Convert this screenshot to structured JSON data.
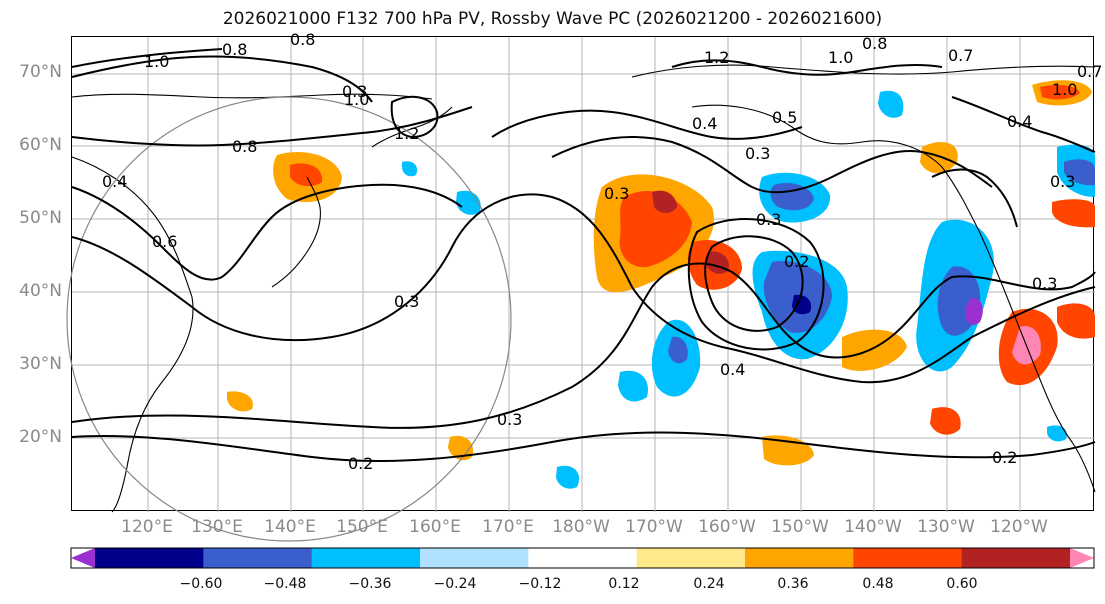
{
  "title": "2026021000 F132 700 hPa PV, Rossby Wave PC (2026021200 - 2026021600)",
  "latitude_labels": [
    "70°N",
    "60°N",
    "50°N",
    "40°N",
    "30°N",
    "20°N"
  ],
  "longitude_labels": [
    "120°E",
    "130°E",
    "140°E",
    "150°E",
    "160°E",
    "170°E",
    "180°W",
    "170°W",
    "160°W",
    "150°W",
    "140°W",
    "130°W",
    "120°W"
  ],
  "contour_labels": [
    "1.0",
    "0.8",
    "0.8",
    "1.0",
    "1.2",
    "0.8",
    "0.4",
    "0.6",
    "0.3",
    "0.3",
    "0.2",
    "0.3",
    "1.2",
    "1.0",
    "0.8",
    "0.7",
    "1.0",
    "0.4",
    "0.5",
    "0.3",
    "0.3",
    "0.3",
    "0.2",
    "0.4",
    "0.3",
    "0.4",
    "0.2",
    "0.3",
    "0.7"
  ],
  "colorbar": {
    "ticks": [
      "−0.60",
      "−0.48",
      "−0.36",
      "−0.24",
      "−0.12",
      "0.12",
      "0.24",
      "0.36",
      "0.48",
      "0.60"
    ],
    "colors": [
      "#9b30d0",
      "#00008b",
      "#3a5fcd",
      "#00bfff",
      "#b0e2ff",
      "#ffffff",
      "#ffe98a",
      "#ffa500",
      "#ff4500",
      "#b22222",
      "#ff85b4"
    ]
  }
}
